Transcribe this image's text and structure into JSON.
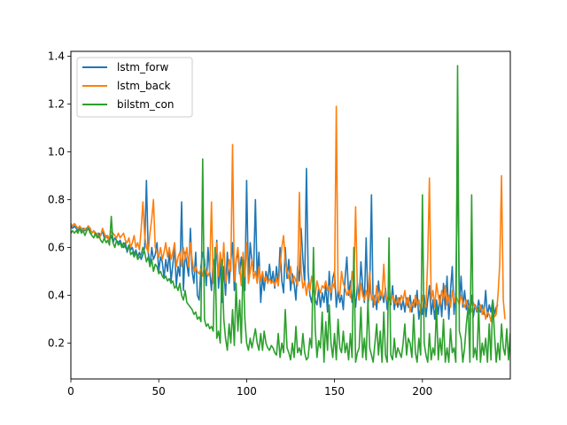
{
  "chart_data": {
    "type": "line",
    "title": "",
    "xlabel": "",
    "ylabel": "",
    "xlim": [
      0,
      250
    ],
    "ylim": [
      0.05,
      1.42
    ],
    "xticks": [
      0,
      50,
      100,
      150,
      200
    ],
    "yticks": [
      0.2,
      0.4,
      0.6,
      0.8,
      1.0,
      1.2,
      1.4
    ],
    "xtick_labels": [
      "0",
      "50",
      "100",
      "150",
      "200"
    ],
    "ytick_labels": [
      "0.2",
      "0.4",
      "0.6",
      "0.8",
      "1.0",
      "1.2",
      "1.4"
    ],
    "grid": false,
    "legend_position": "upper left",
    "series": [
      {
        "name": "lstm_forw",
        "color": "#1f77b4",
        "values": [
          0.69,
          0.68,
          0.69,
          0.68,
          0.67,
          0.68,
          0.67,
          0.68,
          0.67,
          0.68,
          0.69,
          0.67,
          0.66,
          0.67,
          0.66,
          0.65,
          0.66,
          0.65,
          0.67,
          0.64,
          0.65,
          0.64,
          0.63,
          0.65,
          0.62,
          0.64,
          0.63,
          0.62,
          0.63,
          0.61,
          0.6,
          0.62,
          0.58,
          0.61,
          0.59,
          0.6,
          0.57,
          0.59,
          0.56,
          0.58,
          0.55,
          0.57,
          0.6,
          0.88,
          0.58,
          0.52,
          0.6,
          0.55,
          0.57,
          0.62,
          0.5,
          0.56,
          0.54,
          0.47,
          0.55,
          0.5,
          0.58,
          0.46,
          0.53,
          0.6,
          0.44,
          0.52,
          0.48,
          0.79,
          0.42,
          0.58,
          0.53,
          0.48,
          0.68,
          0.5,
          0.45,
          0.58,
          0.4,
          0.38,
          0.52,
          0.58,
          0.55,
          0.44,
          0.6,
          0.5,
          0.42,
          0.55,
          0.47,
          0.63,
          0.43,
          0.54,
          0.37,
          0.52,
          0.4,
          0.58,
          0.45,
          0.54,
          0.62,
          0.42,
          0.55,
          0.58,
          0.49,
          0.56,
          0.48,
          0.42,
          0.88,
          0.46,
          0.62,
          0.54,
          0.5,
          0.8,
          0.47,
          0.58,
          0.37,
          0.48,
          0.42,
          0.5,
          0.46,
          0.53,
          0.45,
          0.5,
          0.43,
          0.52,
          0.44,
          0.6,
          0.46,
          0.41,
          0.6,
          0.47,
          0.55,
          0.42,
          0.49,
          0.45,
          0.38,
          0.52,
          0.46,
          0.68,
          0.55,
          0.45,
          0.93,
          0.5,
          0.4,
          0.37,
          0.44,
          0.38,
          0.36,
          0.43,
          0.35,
          0.41,
          0.37,
          0.44,
          0.33,
          0.5,
          0.38,
          0.47,
          0.5,
          0.35,
          0.42,
          0.37,
          0.4,
          0.34,
          0.47,
          0.56,
          0.4,
          0.46,
          0.37,
          0.42,
          0.35,
          0.45,
          0.38,
          0.54,
          0.44,
          0.37,
          0.64,
          0.36,
          0.42,
          0.82,
          0.35,
          0.4,
          0.34,
          0.46,
          0.38,
          0.41,
          0.37,
          0.43,
          0.34,
          0.4,
          0.36,
          0.44,
          0.34,
          0.4,
          0.35,
          0.39,
          0.34,
          0.38,
          0.33,
          0.39,
          0.35,
          0.4,
          0.33,
          0.38,
          0.35,
          0.42,
          0.3,
          0.36,
          0.32,
          0.4,
          0.31,
          0.38,
          0.44,
          0.32,
          0.38,
          0.3,
          0.38,
          0.32,
          0.4,
          0.31,
          0.45,
          0.34,
          0.48,
          0.3,
          0.42,
          0.52,
          0.32,
          0.42,
          1.01,
          0.36,
          0.48,
          0.35,
          0.42,
          0.34,
          0.38,
          0.32,
          0.4,
          0.31,
          0.36,
          0.33,
          0.38,
          0.33,
          0.36,
          0.32,
          0.42,
          0.31,
          0.36,
          0.33,
          0.38,
          0.32,
          0.35,
          0.36
        ],
        "peaks": [
          {
            "x": 43,
            "y": 0.88
          },
          {
            "x": 102,
            "y": 0.88
          },
          {
            "x": 135,
            "y": 0.93
          },
          {
            "x": 173,
            "y": 0.82
          },
          {
            "x": 223,
            "y": 1.01
          }
        ]
      },
      {
        "name": "lstm_back",
        "color": "#ff7f0e",
        "values": [
          0.7,
          0.69,
          0.7,
          0.69,
          0.68,
          0.69,
          0.68,
          0.67,
          0.68,
          0.67,
          0.69,
          0.68,
          0.66,
          0.67,
          0.65,
          0.66,
          0.64,
          0.65,
          0.68,
          0.66,
          0.64,
          0.65,
          0.63,
          0.67,
          0.66,
          0.65,
          0.64,
          0.66,
          0.64,
          0.65,
          0.66,
          0.63,
          0.62,
          0.64,
          0.6,
          0.62,
          0.65,
          0.6,
          0.62,
          0.59,
          0.68,
          0.79,
          0.65,
          0.6,
          0.58,
          0.66,
          0.72,
          0.8,
          0.6,
          0.58,
          0.56,
          0.6,
          0.55,
          0.58,
          0.62,
          0.56,
          0.6,
          0.55,
          0.58,
          0.62,
          0.52,
          0.56,
          0.58,
          0.52,
          0.6,
          0.55,
          0.6,
          0.52,
          0.62,
          0.55,
          0.5,
          0.52,
          0.5,
          0.49,
          0.51,
          0.48,
          0.52,
          0.5,
          0.48,
          0.5,
          0.79,
          0.45,
          0.55,
          0.62,
          0.48,
          0.58,
          0.5,
          0.62,
          0.45,
          0.5,
          0.55,
          0.5,
          1.03,
          0.46,
          0.55,
          0.6,
          0.52,
          0.44,
          0.58,
          0.48,
          0.62,
          0.45,
          0.5,
          0.55,
          0.47,
          0.5,
          0.45,
          0.52,
          0.46,
          0.5,
          0.46,
          0.48,
          0.45,
          0.47,
          0.45,
          0.46,
          0.44,
          0.47,
          0.44,
          0.52,
          0.6,
          0.65,
          0.54,
          0.5,
          0.47,
          0.52,
          0.45,
          0.48,
          0.46,
          0.44,
          0.83,
          0.5,
          0.43,
          0.46,
          0.4,
          0.45,
          0.42,
          0.48,
          0.44,
          0.4,
          0.46,
          0.43,
          0.41,
          0.44,
          0.43,
          0.46,
          0.42,
          0.44,
          0.41,
          0.45,
          0.43,
          1.19,
          0.42,
          0.4,
          0.5,
          0.45,
          0.43,
          0.4,
          0.42,
          0.39,
          0.5,
          0.44,
          0.77,
          0.42,
          0.38,
          0.45,
          0.4,
          0.38,
          0.42,
          0.38,
          0.5,
          0.38,
          0.4,
          0.36,
          0.44,
          0.37,
          0.42,
          0.39,
          0.53,
          0.4,
          0.38,
          0.41,
          0.37,
          0.4,
          0.38,
          0.36,
          0.39,
          0.36,
          0.4,
          0.38,
          0.42,
          0.36,
          0.39,
          0.33,
          0.37,
          0.35,
          0.4,
          0.36,
          0.38,
          0.33,
          0.4,
          0.36,
          0.35,
          0.55,
          0.89,
          0.38,
          0.42,
          0.35,
          0.45,
          0.4,
          0.36,
          0.42,
          0.38,
          0.44,
          0.36,
          0.4,
          0.35,
          0.42,
          0.37,
          0.4,
          0.38,
          0.36,
          0.4,
          0.37,
          0.35,
          0.38,
          0.34,
          0.36,
          0.33,
          0.37,
          0.35,
          0.34,
          0.33,
          0.36,
          0.32,
          0.35,
          0.3,
          0.33,
          0.32,
          0.29,
          0.35,
          0.31,
          0.32,
          0.4,
          0.53,
          0.9,
          0.38,
          0.3
        ],
        "peaks": [
          {
            "x": 47,
            "y": 0.8
          },
          {
            "x": 92,
            "y": 1.03
          },
          {
            "x": 131,
            "y": 0.83
          },
          {
            "x": 153,
            "y": 1.19
          },
          {
            "x": 206,
            "y": 0.89
          },
          {
            "x": 247,
            "y": 0.9
          }
        ]
      },
      {
        "name": "bilstm_con",
        "color": "#2ca02c",
        "values": [
          0.66,
          0.67,
          0.66,
          0.67,
          0.66,
          0.68,
          0.66,
          0.67,
          0.65,
          0.67,
          0.68,
          0.66,
          0.65,
          0.64,
          0.66,
          0.64,
          0.65,
          0.63,
          0.62,
          0.64,
          0.62,
          0.63,
          0.61,
          0.73,
          0.62,
          0.6,
          0.63,
          0.61,
          0.62,
          0.6,
          0.62,
          0.6,
          0.59,
          0.61,
          0.57,
          0.58,
          0.56,
          0.58,
          0.55,
          0.56,
          0.57,
          0.6,
          0.58,
          0.54,
          0.56,
          0.52,
          0.55,
          0.5,
          0.53,
          0.52,
          0.49,
          0.5,
          0.48,
          0.47,
          0.48,
          0.46,
          0.47,
          0.45,
          0.46,
          0.43,
          0.44,
          0.42,
          0.45,
          0.4,
          0.38,
          0.42,
          0.37,
          0.36,
          0.35,
          0.34,
          0.32,
          0.33,
          0.3,
          0.31,
          0.29,
          0.97,
          0.3,
          0.27,
          0.28,
          0.26,
          0.27,
          0.25,
          0.6,
          0.22,
          0.25,
          0.2,
          0.55,
          0.3,
          0.22,
          0.17,
          0.28,
          0.2,
          0.34,
          0.19,
          0.45,
          0.25,
          0.38,
          0.2,
          0.55,
          0.3,
          0.2,
          0.17,
          0.22,
          0.18,
          0.22,
          0.26,
          0.2,
          0.17,
          0.24,
          0.17,
          0.25,
          0.2,
          0.18,
          0.17,
          0.19,
          0.18,
          0.16,
          0.15,
          0.24,
          0.14,
          0.2,
          0.16,
          0.34,
          0.18,
          0.16,
          0.13,
          0.2,
          0.14,
          0.27,
          0.16,
          0.18,
          0.15,
          0.24,
          0.16,
          0.13,
          0.14,
          0.22,
          0.18,
          0.6,
          0.26,
          0.14,
          0.21,
          0.18,
          0.33,
          0.12,
          0.29,
          0.17,
          0.36,
          0.2,
          0.14,
          0.24,
          0.13,
          0.3,
          0.18,
          0.16,
          0.25,
          0.16,
          0.2,
          0.13,
          0.24,
          0.14,
          0.6,
          0.12,
          0.16,
          0.18,
          0.35,
          0.14,
          0.22,
          0.13,
          0.38,
          0.18,
          0.15,
          0.12,
          0.2,
          0.28,
          0.15,
          0.25,
          0.12,
          0.33,
          0.15,
          0.12,
          0.64,
          0.15,
          0.13,
          0.22,
          0.14,
          0.18,
          0.16,
          0.14,
          0.2,
          0.28,
          0.15,
          0.22,
          0.2,
          0.14,
          0.32,
          0.16,
          0.12,
          0.22,
          0.15,
          0.82,
          0.2,
          0.15,
          0.12,
          0.24,
          0.13,
          0.18,
          0.15,
          0.35,
          0.13,
          0.22,
          0.15,
          0.3,
          0.12,
          0.18,
          0.12,
          0.26,
          0.16,
          0.18,
          0.12,
          1.36,
          0.25,
          0.22,
          0.12,
          0.18,
          0.28,
          0.35,
          0.12,
          0.82,
          0.14,
          0.18,
          0.13,
          0.35,
          0.12,
          0.2,
          0.15,
          0.22,
          0.12,
          0.28,
          0.13,
          0.38,
          0.24,
          0.12,
          0.2,
          0.13,
          0.28,
          0.18,
          0.15,
          0.26,
          0.13,
          0.24,
          0.14,
          0.3,
          0.24,
          0.13,
          0.2,
          0.3,
          0.12,
          0.35,
          0.13
        ],
        "peaks": [
          {
            "x": 23,
            "y": 0.73
          },
          {
            "x": 75,
            "y": 0.97
          },
          {
            "x": 195,
            "y": 0.82
          },
          {
            "x": 214,
            "y": 1.36
          },
          {
            "x": 222,
            "y": 0.82
          }
        ]
      }
    ]
  },
  "legend": {
    "items": [
      {
        "label": "lstm_forw",
        "color": "#1f77b4"
      },
      {
        "label": "lstm_back",
        "color": "#ff7f0e"
      },
      {
        "label": "bilstm_con",
        "color": "#2ca02c"
      }
    ]
  }
}
